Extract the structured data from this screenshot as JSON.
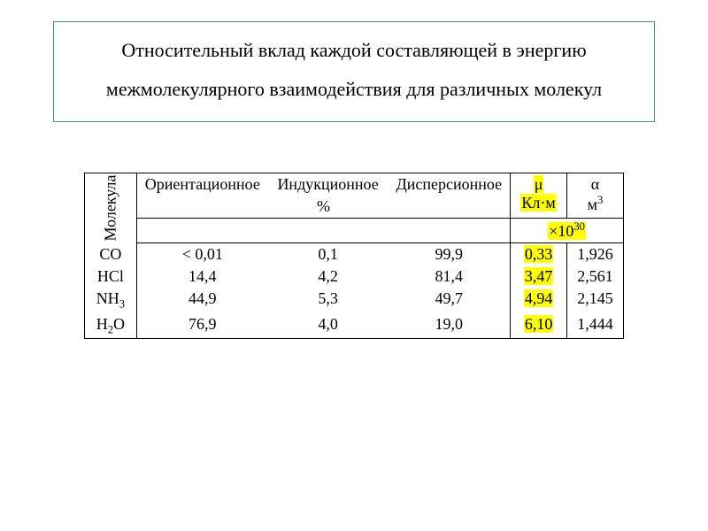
{
  "title": {
    "line1": "Относительный вклад каждой составляющей в энергию",
    "line2": "межмолекулярного взаимодействия для различных молекул",
    "border_color": "#3a9a7a",
    "fontsize": 22
  },
  "table": {
    "row_header_vertical": "Молекула",
    "columns": {
      "orientation": "Ориентационное",
      "induction": "Индукционное",
      "dispersion": "Дисперсионное",
      "mu_symbol": "μ",
      "mu_unit": "Кл·м",
      "alpha_symbol": "α",
      "alpha_unit": "м",
      "alpha_unit_sup": "3",
      "percent": "%",
      "scale_prefix": "×10",
      "scale_exp": "30"
    },
    "highlight_color": "#ffff00",
    "rows": [
      {
        "mol_html": "CO",
        "or": "< 0,01",
        "ind": "0,1",
        "disp": "99,9",
        "mu": "0,33",
        "alpha": "1,926"
      },
      {
        "mol_html": "HCl",
        "or": "14,4",
        "ind": "4,2",
        "disp": "81,4",
        "mu": "3,47",
        "alpha": "2,561"
      },
      {
        "mol_html": "NH<sub>3</sub>",
        "or": "44,9",
        "ind": "5,3",
        "disp": "49,7",
        "mu": "4,94",
        "alpha": "2,145"
      },
      {
        "mol_html": "H<sub>2</sub>O",
        "or": "76,9",
        "ind": "4,0",
        "disp": "19,0",
        "mu": "6,10",
        "alpha": "1,444"
      }
    ],
    "border_color": "#000000",
    "fontsize": 18
  }
}
